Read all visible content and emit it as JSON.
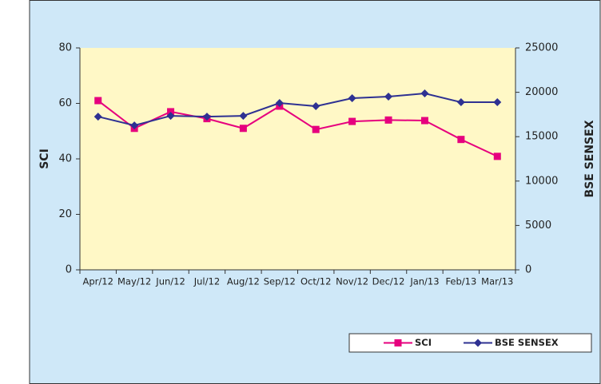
{
  "chart_data": {
    "type": "line",
    "categories": [
      "Apr/12",
      "May/12",
      "Jun/12",
      "Jul/12",
      "Aug/12",
      "Sep/12",
      "Oct/12",
      "Nov/12",
      "Dec/12",
      "Jan/13",
      "Feb/13",
      "Mar/13"
    ],
    "ylabel": "SCI",
    "y2label": "BSE SENSEX",
    "ylim": [
      0,
      80
    ],
    "yticks": [
      0,
      20,
      40,
      60,
      80
    ],
    "y2lim": [
      0,
      25000
    ],
    "y2ticks": [
      0,
      5000,
      10000,
      15000,
      20000,
      25000
    ],
    "series": [
      {
        "name": "SCI",
        "color": "#e6007e",
        "marker": "square",
        "values": [
          61,
          51,
          57,
          54.5,
          51,
          59,
          50.6,
          53.5,
          54,
          53.8,
          47,
          40.9
        ]
      },
      {
        "name": "BSE SENSEX",
        "color": "#2e3192",
        "marker": "diamond",
        "axis": "y2",
        "values": [
          17260,
          16270,
          17350,
          17260,
          17350,
          18790,
          18430,
          19330,
          19510,
          19870,
          18880,
          18880
        ]
      }
    ],
    "legend": "bottom-right"
  }
}
